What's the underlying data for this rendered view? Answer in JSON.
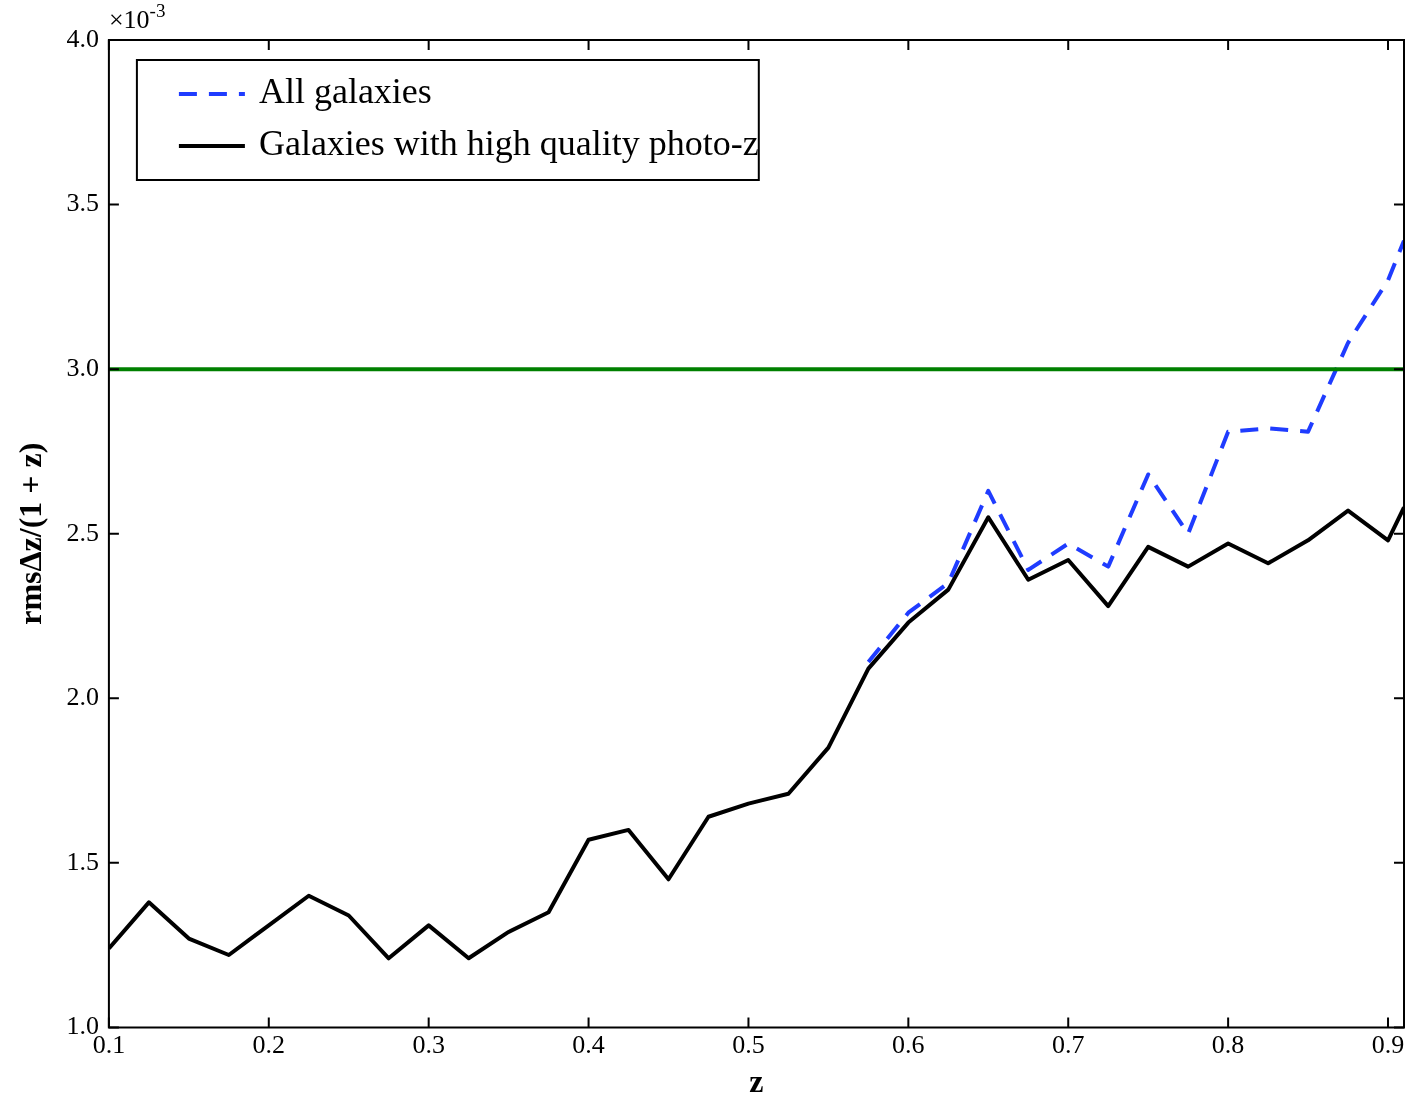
{
  "chart_data": {
    "type": "line",
    "xlabel": "z",
    "ylabel": "rmsΔz/(1 + z)",
    "annotations": [
      "×10$^{-3}$"
    ],
    "xlim": [
      0.1,
      0.91
    ],
    "xticks": [
      0.1,
      0.2,
      0.3,
      0.4,
      0.5,
      0.6,
      0.7,
      0.8,
      0.9
    ],
    "ylim": [
      1,
      4
    ],
    "yticks": [
      {
        "value": 1,
        "label": "1.0"
      },
      {
        "value": 1.5,
        "label": "1.5"
      },
      {
        "value": 2,
        "label": "2.0"
      },
      {
        "value": 2.5,
        "label": "2.5"
      },
      {
        "value": 3,
        "label": "3.0"
      },
      {
        "value": 3.5,
        "label": "3.5"
      },
      {
        "value": 4,
        "label": "4.0"
      }
    ],
    "grid": false,
    "legend": "top left",
    "marker": "none",
    "x": [
      0.1,
      0.125,
      0.15,
      0.175,
      0.2,
      0.225,
      0.25,
      0.275,
      0.3,
      0.325,
      0.35,
      0.375,
      0.4,
      0.425,
      0.45,
      0.475,
      0.5,
      0.525,
      0.55,
      0.575,
      0.6,
      0.625,
      0.65,
      0.675,
      0.7,
      0.725,
      0.75,
      0.775,
      0.8,
      0.825,
      0.85,
      0.875,
      0.9,
      0.91
    ],
    "series": [
      {
        "name": "All galaxies",
        "color": "#1f3cff",
        "line_style": "dashed",
        "values": [
          null,
          null,
          null,
          null,
          null,
          null,
          null,
          null,
          null,
          null,
          null,
          null,
          null,
          null,
          null,
          null,
          null,
          null,
          null,
          2.11,
          2.26,
          2.35,
          2.63,
          2.39,
          2.47,
          2.4,
          2.68,
          2.5,
          2.81,
          2.82,
          2.81,
          3.08,
          3.27,
          3.39
        ]
      },
      {
        "name": "Galaxies with high quality photo-z",
        "color": "#000000",
        "line_style": "solid",
        "values": [
          1.24,
          1.38,
          1.27,
          1.22,
          1.31,
          1.4,
          1.34,
          1.21,
          1.31,
          1.21,
          1.29,
          1.35,
          1.57,
          1.6,
          1.45,
          1.64,
          1.68,
          1.71,
          1.85,
          2.09,
          2.23,
          2.33,
          2.55,
          2.36,
          2.42,
          2.28,
          2.46,
          2.4,
          2.47,
          2.41,
          2.48,
          2.57,
          2.48,
          2.58
        ]
      }
    ],
    "ref_lines": [
      {
        "axis": "y",
        "value": 3,
        "color": "#008000"
      }
    ]
  }
}
